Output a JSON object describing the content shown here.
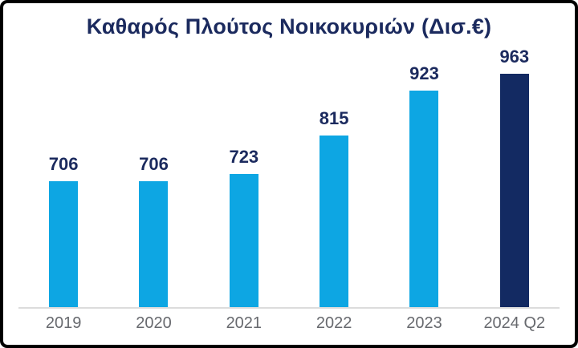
{
  "frame": {
    "border_color": "#000000",
    "background_color": "#ffffff"
  },
  "chart_data": {
    "type": "bar",
    "title": "Καθαρός Πλούτος Νοικοκυριών (Δισ.€)",
    "categories": [
      "2019",
      "2020",
      "2021",
      "2022",
      "2023",
      "2024 Q2"
    ],
    "values": [
      706,
      706,
      723,
      815,
      923,
      963
    ],
    "bar_colors": [
      "#0DA6E3",
      "#0DA6E3",
      "#0DA6E3",
      "#0DA6E3",
      "#0DA6E3",
      "#132A62"
    ],
    "highlight_index": 5,
    "highlight_color": "#132A62",
    "base_bar_color": "#0DA6E3",
    "value_label_color": "#1B2A5E",
    "axis_label_color": "#67696E",
    "axis_line_color": "#DCDCDC",
    "title_color": "#1B2A5E",
    "xlabel": "",
    "ylabel": "",
    "ylim": [
      406,
      963
    ],
    "grid": false,
    "legend": false,
    "data_labels": true
  }
}
